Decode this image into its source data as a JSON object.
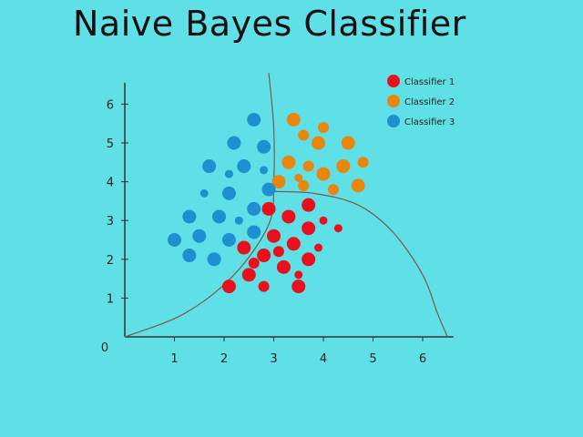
{
  "title": "Naive Bayes Classifier",
  "colors": {
    "background": "#5ee0e6",
    "axis": "#333333",
    "boundary": "#7a5a4a"
  },
  "chart_data": {
    "type": "scatter",
    "title": "Naive Bayes Classifier",
    "xlabel": "",
    "ylabel": "",
    "xlim": [
      0,
      6.6
    ],
    "ylim": [
      0,
      6.6
    ],
    "x_ticks": [
      1,
      2,
      3,
      4,
      5,
      6
    ],
    "y_ticks": [
      1,
      2,
      3,
      4,
      5,
      6
    ],
    "origin_label": "0",
    "grid": false,
    "legend_position": "top-right",
    "series": [
      {
        "name": "Classifier 1",
        "color": "#e8101c",
        "points": [
          [
            2.1,
            1.3
          ],
          [
            2.5,
            1.6
          ],
          [
            2.8,
            1.3
          ],
          [
            3.5,
            1.3
          ],
          [
            3.5,
            1.6
          ],
          [
            2.4,
            2.3
          ],
          [
            2.8,
            2.1
          ],
          [
            3.2,
            1.8
          ],
          [
            3.7,
            2.0
          ],
          [
            3.0,
            2.6
          ],
          [
            3.4,
            2.4
          ],
          [
            3.9,
            2.3
          ],
          [
            3.7,
            2.8
          ],
          [
            3.3,
            3.1
          ],
          [
            2.9,
            3.3
          ],
          [
            3.7,
            3.4
          ],
          [
            4.0,
            3.0
          ],
          [
            4.3,
            2.8
          ],
          [
            2.6,
            1.9
          ],
          [
            3.1,
            2.2
          ]
        ],
        "sizes": [
          "lg",
          "lg",
          "md",
          "lg",
          "sm",
          "lg",
          "lg",
          "lg",
          "lg",
          "lg",
          "lg",
          "sm",
          "lg",
          "lg",
          "lg",
          "lg",
          "sm",
          "sm",
          "md",
          "md"
        ]
      },
      {
        "name": "Classifier 2",
        "color": "#e8860e",
        "points": [
          [
            3.4,
            5.6
          ],
          [
            3.6,
            5.2
          ],
          [
            4.0,
            5.4
          ],
          [
            3.9,
            5.0
          ],
          [
            4.5,
            5.0
          ],
          [
            3.3,
            4.5
          ],
          [
            3.7,
            4.4
          ],
          [
            4.0,
            4.2
          ],
          [
            4.4,
            4.4
          ],
          [
            4.8,
            4.5
          ],
          [
            3.1,
            4.0
          ],
          [
            3.6,
            3.9
          ],
          [
            4.2,
            3.8
          ],
          [
            4.7,
            3.9
          ],
          [
            3.5,
            4.1
          ]
        ],
        "sizes": [
          "lg",
          "md",
          "md",
          "lg",
          "lg",
          "lg",
          "md",
          "lg",
          "lg",
          "md",
          "lg",
          "md",
          "md",
          "lg",
          "sm"
        ]
      },
      {
        "name": "Classifier 3",
        "color": "#1e8fd0",
        "points": [
          [
            2.6,
            5.6
          ],
          [
            2.2,
            5.0
          ],
          [
            2.8,
            4.9
          ],
          [
            1.7,
            4.4
          ],
          [
            2.1,
            4.2
          ],
          [
            2.4,
            4.4
          ],
          [
            2.8,
            4.3
          ],
          [
            1.6,
            3.7
          ],
          [
            2.1,
            3.7
          ],
          [
            2.9,
            3.8
          ],
          [
            1.3,
            3.1
          ],
          [
            1.9,
            3.1
          ],
          [
            2.3,
            3.0
          ],
          [
            2.6,
            3.3
          ],
          [
            1.0,
            2.5
          ],
          [
            1.5,
            2.6
          ],
          [
            2.1,
            2.5
          ],
          [
            2.6,
            2.7
          ],
          [
            1.3,
            2.1
          ],
          [
            1.8,
            2.0
          ]
        ],
        "sizes": [
          "lg",
          "lg",
          "lg",
          "lg",
          "sm",
          "lg",
          "sm",
          "sm",
          "lg",
          "lg",
          "lg",
          "lg",
          "sm",
          "lg",
          "lg",
          "lg",
          "lg",
          "lg",
          "lg",
          "lg"
        ]
      }
    ],
    "boundaries": [
      {
        "name": "boundary-1-3",
        "points": [
          [
            0,
            0
          ],
          [
            1.2,
            0.6
          ],
          [
            2.2,
            1.6
          ],
          [
            2.9,
            2.9
          ],
          [
            3.0,
            4.0
          ],
          [
            3.0,
            5.4
          ],
          [
            2.9,
            6.8
          ]
        ]
      },
      {
        "name": "boundary-1-2",
        "points": [
          [
            2.9,
            3.75
          ],
          [
            3.8,
            3.7
          ],
          [
            4.7,
            3.4
          ],
          [
            5.4,
            2.7
          ],
          [
            6.0,
            1.6
          ],
          [
            6.3,
            0.6
          ],
          [
            6.5,
            0
          ]
        ]
      }
    ]
  }
}
